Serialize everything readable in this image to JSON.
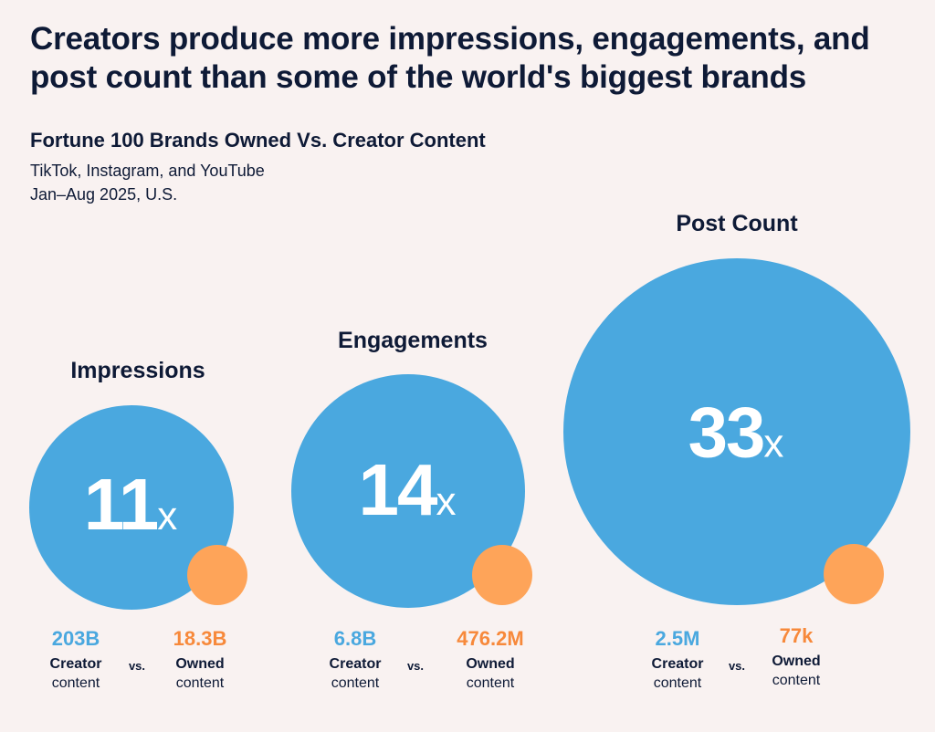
{
  "headline": "Creators produce more impressions, engagements, and post count than some of the world's biggest brands",
  "subtitle": "Fortune 100 Brands Owned Vs. Creator Content",
  "platforms": "TikTok, Instagram, and YouTube",
  "period": "Jan–Aug 2025, U.S.",
  "colors": {
    "creator": "#4aa8df",
    "owned": "#fea459",
    "owned_text": "#f7893b",
    "text": "#0e1a36",
    "background": "#f9f2f1"
  },
  "chart_data": {
    "type": "bubble",
    "title": "Fortune 100 Brands Owned Vs. Creator Content",
    "series": [
      {
        "name": "Creator content",
        "color": "#4aa8df"
      },
      {
        "name": "Owned content",
        "color": "#fea459"
      }
    ],
    "vs_label": "vs.",
    "panels": [
      {
        "title": "Impressions",
        "multiplier": "11",
        "multiplier_suffix": "x",
        "creator_value": "203B",
        "owned_value": "18.3B",
        "creator_label_bold": "Creator",
        "creator_label_rest": "content",
        "owned_label_bold": "Owned",
        "owned_label_rest": "content"
      },
      {
        "title": "Engagements",
        "multiplier": "14",
        "multiplier_suffix": "x",
        "creator_value": "6.8B",
        "owned_value": "476.2M",
        "creator_label_bold": "Creator",
        "creator_label_rest": "content",
        "owned_label_bold": "Owned",
        "owned_label_rest": "content"
      },
      {
        "title": "Post Count",
        "multiplier": "33",
        "multiplier_suffix": "x",
        "creator_value": "2.5M",
        "owned_value": "77k",
        "creator_label_bold": "Creator",
        "creator_label_rest": "content",
        "owned_label_bold": "Owned",
        "owned_label_rest": "content"
      }
    ]
  }
}
